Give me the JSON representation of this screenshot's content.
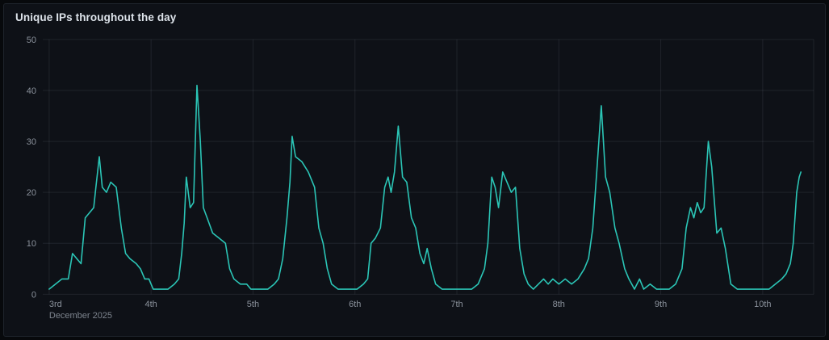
{
  "panel": {
    "title": "Unique IPs throughout the day"
  },
  "colors": {
    "page_bg": "#07090c",
    "panel_bg": "#0e1117",
    "panel_border": "#1e232b",
    "line": "#2bc5b6",
    "grid": "rgba(210,225,245,0.09)",
    "tick_text": "#8b929c",
    "title_text": "#dde3ea"
  },
  "chart_data": {
    "type": "line",
    "title": "Unique IPs throughout the day",
    "xlabel": "",
    "ylabel": "",
    "x_unit": "hours since Dec 3 2025 00:00",
    "xlim": [
      -1.5,
      180
    ],
    "ylim": [
      0,
      50
    ],
    "grid": true,
    "legend": "none",
    "y_ticks": [
      0,
      10,
      20,
      30,
      40,
      50
    ],
    "x_ticks": [
      {
        "hour": 0,
        "label": "3rd",
        "sublabel": "December 2025"
      },
      {
        "hour": 24,
        "label": "4th"
      },
      {
        "hour": 48,
        "label": "5th"
      },
      {
        "hour": 72,
        "label": "6th"
      },
      {
        "hour": 96,
        "label": "7th"
      },
      {
        "hour": 120,
        "label": "8th"
      },
      {
        "hour": 144,
        "label": "9th"
      },
      {
        "hour": 168,
        "label": "10th"
      }
    ],
    "series": [
      {
        "name": "Unique IPs",
        "points": [
          [
            0,
            1
          ],
          [
            1.5,
            2
          ],
          [
            3,
            3
          ],
          [
            4.5,
            3
          ],
          [
            5.5,
            8
          ],
          [
            6.5,
            7
          ],
          [
            7.5,
            6
          ],
          [
            8.5,
            15
          ],
          [
            9.5,
            16
          ],
          [
            10.5,
            17
          ],
          [
            11,
            21
          ],
          [
            11.8,
            27
          ],
          [
            12.5,
            21
          ],
          [
            13.5,
            20
          ],
          [
            14.5,
            22
          ],
          [
            15.8,
            21
          ],
          [
            17,
            13
          ],
          [
            18,
            8
          ],
          [
            19,
            7
          ],
          [
            20.5,
            6
          ],
          [
            21.5,
            5
          ],
          [
            22.5,
            3
          ],
          [
            23.5,
            3
          ],
          [
            24.5,
            1
          ],
          [
            26,
            1
          ],
          [
            28,
            1
          ],
          [
            29.5,
            2
          ],
          [
            30.5,
            3
          ],
          [
            31.2,
            8
          ],
          [
            31.8,
            14
          ],
          [
            32.3,
            23
          ],
          [
            33.2,
            17
          ],
          [
            34,
            18
          ],
          [
            34.8,
            41
          ],
          [
            35.6,
            30
          ],
          [
            36.3,
            17
          ],
          [
            37.2,
            15
          ],
          [
            38.5,
            12
          ],
          [
            40,
            11
          ],
          [
            41.5,
            10
          ],
          [
            42.5,
            5
          ],
          [
            43.5,
            3
          ],
          [
            45,
            2
          ],
          [
            46.5,
            2
          ],
          [
            47.5,
            1
          ],
          [
            48.5,
            1
          ],
          [
            50,
            1
          ],
          [
            51.5,
            1
          ],
          [
            53,
            2
          ],
          [
            54,
            3
          ],
          [
            55,
            7
          ],
          [
            56,
            15
          ],
          [
            56.7,
            22
          ],
          [
            57.2,
            31
          ],
          [
            58,
            27
          ],
          [
            59.5,
            26
          ],
          [
            61,
            24
          ],
          [
            62.5,
            21
          ],
          [
            63.5,
            13
          ],
          [
            64.5,
            10
          ],
          [
            65.5,
            5
          ],
          [
            66.5,
            2
          ],
          [
            68,
            1
          ],
          [
            69.5,
            1
          ],
          [
            71,
            1
          ],
          [
            72.5,
            1
          ],
          [
            74,
            2
          ],
          [
            75,
            3
          ],
          [
            75.8,
            10
          ],
          [
            76.8,
            11
          ],
          [
            78,
            13
          ],
          [
            79,
            21
          ],
          [
            79.8,
            23
          ],
          [
            80.5,
            20
          ],
          [
            81.3,
            24
          ],
          [
            82.2,
            33
          ],
          [
            83.2,
            23
          ],
          [
            84.2,
            22
          ],
          [
            85.3,
            15
          ],
          [
            86.3,
            13
          ],
          [
            87.3,
            8
          ],
          [
            88.2,
            6
          ],
          [
            89,
            9
          ],
          [
            90,
            5
          ],
          [
            91,
            2
          ],
          [
            92.5,
            1
          ],
          [
            94,
            1
          ],
          [
            95.5,
            1
          ],
          [
            96.5,
            1
          ],
          [
            98,
            1
          ],
          [
            99.5,
            1
          ],
          [
            101,
            2
          ],
          [
            102.5,
            5
          ],
          [
            103.3,
            10
          ],
          [
            104.2,
            23
          ],
          [
            105,
            21
          ],
          [
            105.8,
            17
          ],
          [
            106.8,
            24
          ],
          [
            107.8,
            22
          ],
          [
            108.8,
            20
          ],
          [
            109.8,
            21
          ],
          [
            110.8,
            9
          ],
          [
            111.8,
            4
          ],
          [
            112.8,
            2
          ],
          [
            114,
            1
          ],
          [
            115.2,
            2
          ],
          [
            116.4,
            3
          ],
          [
            117.5,
            2
          ],
          [
            118.6,
            3
          ],
          [
            120,
            2
          ],
          [
            121.5,
            3
          ],
          [
            123,
            2
          ],
          [
            124.5,
            3
          ],
          [
            126,
            5
          ],
          [
            127,
            7
          ],
          [
            128,
            13
          ],
          [
            129,
            25
          ],
          [
            130,
            37
          ],
          [
            131,
            23
          ],
          [
            132,
            20
          ],
          [
            133.2,
            13
          ],
          [
            134.2,
            10
          ],
          [
            135.5,
            5
          ],
          [
            136.5,
            3
          ],
          [
            137.8,
            1
          ],
          [
            139,
            3
          ],
          [
            140,
            1
          ],
          [
            141.5,
            2
          ],
          [
            143,
            1
          ],
          [
            144.5,
            1
          ],
          [
            146,
            1
          ],
          [
            147.5,
            2
          ],
          [
            149,
            5
          ],
          [
            150,
            13
          ],
          [
            151,
            17
          ],
          [
            151.8,
            15
          ],
          [
            152.6,
            18
          ],
          [
            153.4,
            16
          ],
          [
            154.2,
            17
          ],
          [
            155.2,
            30
          ],
          [
            156,
            25
          ],
          [
            157.2,
            12
          ],
          [
            158.2,
            13
          ],
          [
            159.2,
            9
          ],
          [
            160.5,
            2
          ],
          [
            162,
            1
          ],
          [
            163.5,
            1
          ],
          [
            165,
            1
          ],
          [
            166.5,
            1
          ],
          [
            168,
            1
          ],
          [
            169.5,
            1
          ],
          [
            171,
            2
          ],
          [
            172.5,
            3
          ],
          [
            173.5,
            4
          ],
          [
            174.5,
            6
          ],
          [
            175.2,
            10
          ],
          [
            176,
            20
          ],
          [
            176.6,
            23
          ],
          [
            177,
            24
          ]
        ]
      }
    ]
  }
}
